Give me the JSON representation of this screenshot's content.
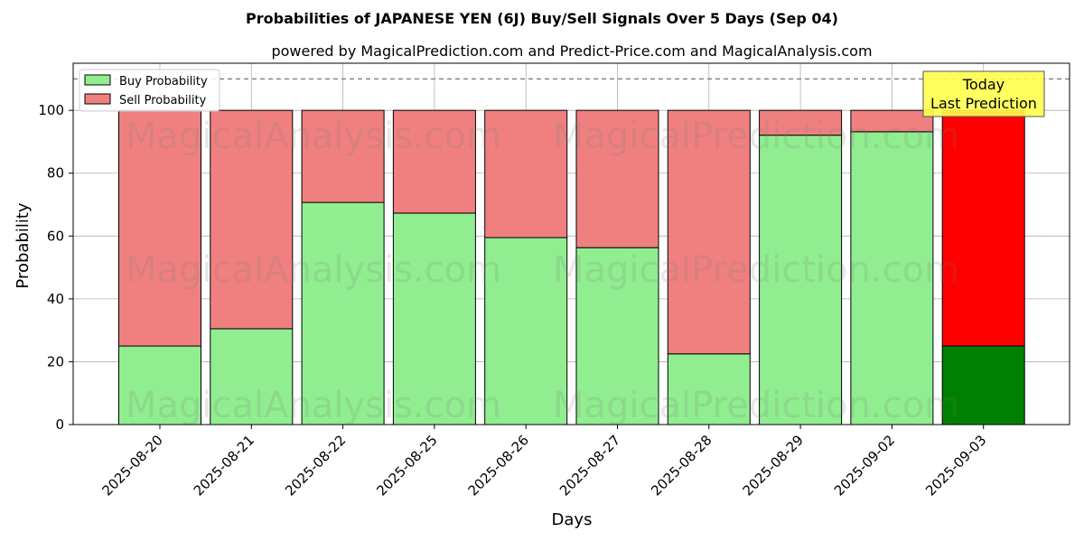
{
  "chart_data": {
    "type": "bar",
    "stacked": true,
    "title": "Probabilities of JAPANESE YEN (6J) Buy/Sell Signals Over 5 Days (Sep 04)",
    "subtitle": "powered by MagicalPrediction.com and Predict-Price.com and MagicalAnalysis.com",
    "xlabel": "Days",
    "ylabel": "Probability",
    "ylim": [
      0,
      115
    ],
    "yticks": [
      0,
      20,
      40,
      60,
      80,
      100
    ],
    "reference_line": 110,
    "grid": true,
    "legend_position": "top-left",
    "categories": [
      "2025-08-20",
      "2025-08-21",
      "2025-08-22",
      "2025-08-25",
      "2025-08-26",
      "2025-08-27",
      "2025-08-28",
      "2025-08-29",
      "2025-09-02",
      "2025-09-03"
    ],
    "series": [
      {
        "name": "Buy Probability",
        "values": [
          25,
          30.5,
          70.7,
          67.3,
          59.5,
          56.3,
          22.5,
          92.1,
          93.2,
          25
        ],
        "color": "#90ee90",
        "highlight_color": "#008000"
      },
      {
        "name": "Sell Probability",
        "values": [
          75,
          69.5,
          29.3,
          32.7,
          40.5,
          43.7,
          77.5,
          7.9,
          6.8,
          75
        ],
        "color": "#f08080",
        "highlight_color": "#ff0000"
      }
    ],
    "highlight_index": 9,
    "annotation": {
      "line1": "Today",
      "line2": "Last Prediction",
      "color": "#ffff4d"
    }
  },
  "watermarks": [
    "MagicalAnalysis.com",
    "MagicalPrediction.com",
    "MagicalAnalysis.com",
    "MagicalPrediction.com",
    "MagicalAnalysis.com",
    "MagicalPrediction.com"
  ]
}
